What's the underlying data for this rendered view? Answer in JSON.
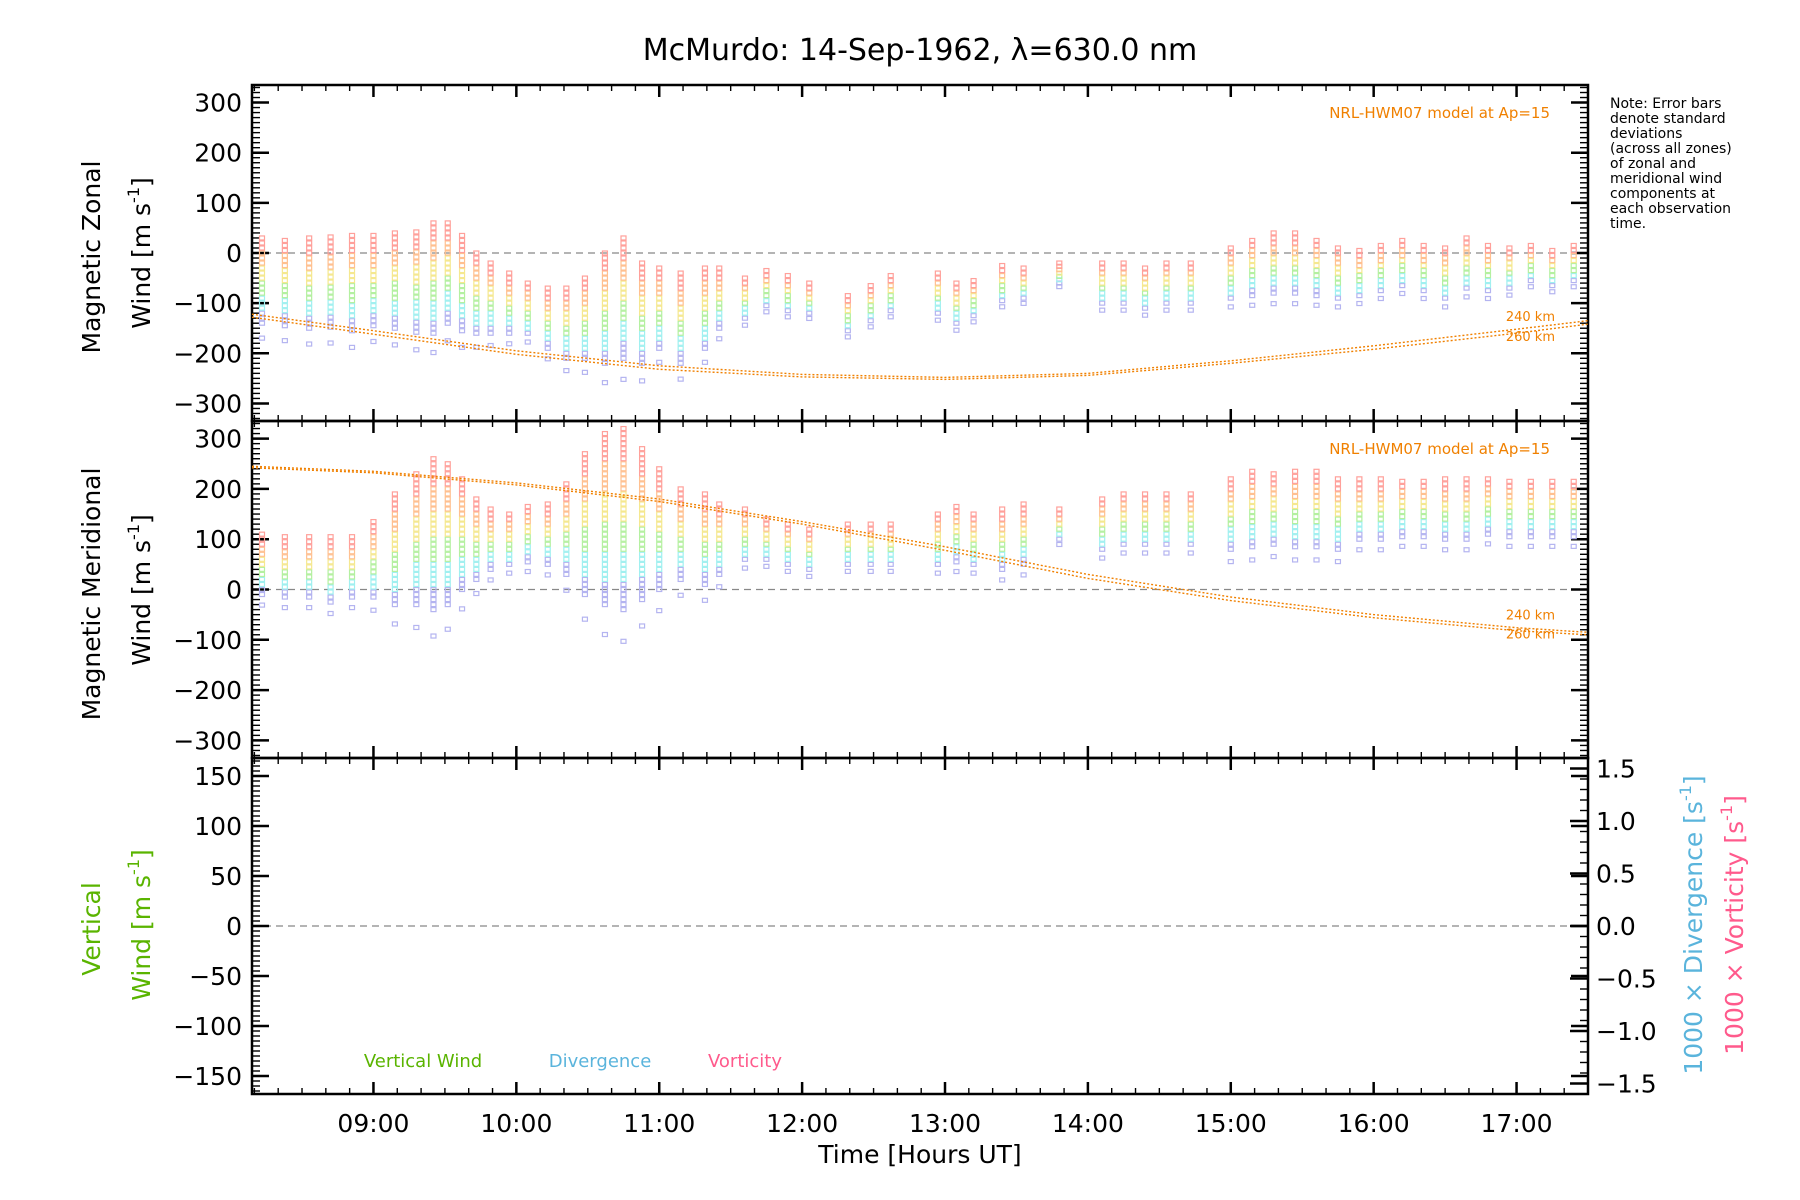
{
  "title": "McMurdo: 14-Sep-1962, λ=630.0 nm",
  "xaxis": {
    "label": "Time [Hours UT]",
    "range": [
      8.15,
      17.5
    ],
    "ticks": [
      9,
      10,
      11,
      12,
      13,
      14,
      15,
      16,
      17
    ],
    "tick_labels": [
      "09:00",
      "10:00",
      "11:00",
      "12:00",
      "13:00",
      "14:00",
      "15:00",
      "16:00",
      "17:00"
    ]
  },
  "note": [
    "Note: Error bars",
    "denote standard",
    "deviations",
    "(across all zones)",
    "of zonal and",
    "meridional wind",
    "components at",
    "each observation",
    "time."
  ],
  "colors": {
    "model": "#f08000",
    "vertical": "#5ab400",
    "divergence": "#5ab4dc",
    "vorticity": "#ff5a8c",
    "spread_scale": [
      "#ffa09a",
      "#ffc090",
      "#f5e890",
      "#b4f0a0",
      "#a0f0f0",
      "#b4b4f0"
    ]
  },
  "chart_data": [
    {
      "id": "zonal",
      "type": "scatter",
      "ylabel_line1": "Magnetic Zonal",
      "ylabel_line2_prefix": "Wind [m s",
      "ylabel_sup": "-1",
      "ylabel_suffix": "]",
      "ylim": [
        -335,
        335
      ],
      "yticks": [
        300,
        200,
        100,
        0,
        -100,
        -200,
        -300
      ],
      "ytick_labels": [
        "300",
        "200",
        "100",
        "0",
        "−100",
        "−200",
        "−300"
      ],
      "zero_line": true,
      "model_label": "NRL-HWM07 model at Ap=15",
      "model_curves": [
        {
          "name": "240 km",
          "x": [
            8.15,
            9,
            10,
            11,
            12,
            13,
            14,
            15,
            16,
            17,
            17.5
          ],
          "y": [
            -122,
            -155,
            -195,
            -225,
            -242,
            -248,
            -240,
            -215,
            -185,
            -152,
            -135
          ]
        },
        {
          "name": "260 km",
          "x": [
            8.15,
            9,
            10,
            11,
            12,
            13,
            14,
            15,
            16,
            17,
            17.5
          ],
          "y": [
            -128,
            -162,
            -202,
            -232,
            -247,
            -252,
            -244,
            -220,
            -192,
            -160,
            -142
          ]
        }
      ],
      "observations": {
        "x": [
          8.22,
          8.38,
          8.55,
          8.7,
          8.85,
          9.0,
          9.15,
          9.3,
          9.42,
          9.52,
          9.62,
          9.72,
          9.82,
          9.95,
          10.08,
          10.22,
          10.35,
          10.48,
          10.62,
          10.75,
          10.88,
          11.0,
          11.15,
          11.32,
          11.42,
          11.6,
          11.75,
          11.9,
          12.05,
          12.32,
          12.48,
          12.62,
          12.95,
          13.08,
          13.2,
          13.4,
          13.55,
          13.8,
          14.1,
          14.25,
          14.4,
          14.55,
          14.72,
          15.0,
          15.15,
          15.3,
          15.45,
          15.6,
          15.75,
          15.9,
          16.05,
          16.2,
          16.35,
          16.5,
          16.65,
          16.8,
          16.95,
          17.1,
          17.25,
          17.4
        ],
        "y": [
          -55,
          -60,
          -60,
          -58,
          -60,
          -55,
          -55,
          -58,
          -50,
          -40,
          -60,
          -80,
          -90,
          -100,
          -110,
          -130,
          -140,
          -130,
          -110,
          -90,
          -120,
          -110,
          -130,
          -110,
          -90,
          -90,
          -70,
          -80,
          -90,
          -120,
          -100,
          -80,
          -80,
          -100,
          -90,
          -60,
          -60,
          -40,
          -60,
          -60,
          -70,
          -60,
          -60,
          -40,
          -30,
          -20,
          -20,
          -30,
          -40,
          -40,
          -30,
          -20,
          -30,
          -40,
          -20,
          -30,
          -30,
          -20,
          -30,
          -20
        ],
        "spread": [
          85,
          85,
          90,
          90,
          95,
          90,
          95,
          100,
          110,
          100,
          95,
          80,
          70,
          60,
          50,
          60,
          70,
          80,
          110,
          120,
          100,
          80,
          90,
          80,
          60,
          40,
          35,
          35,
          30,
          35,
          35,
          35,
          40,
          40,
          35,
          35,
          30,
          20,
          40,
          40,
          40,
          40,
          40,
          50,
          55,
          60,
          60,
          55,
          50,
          45,
          45,
          45,
          45,
          50,
          50,
          45,
          40,
          35,
          35,
          35
        ]
      }
    },
    {
      "id": "meridional",
      "type": "scatter",
      "ylabel_line1": "Magnetic Meridional",
      "ylabel_line2_prefix": "Wind [m s",
      "ylabel_sup": "-1",
      "ylabel_suffix": "]",
      "ylim": [
        -335,
        335
      ],
      "yticks": [
        300,
        200,
        100,
        0,
        -100,
        -200,
        -300
      ],
      "ytick_labels": [
        "300",
        "200",
        "100",
        "0",
        "−100",
        "−200",
        "−300"
      ],
      "zero_line": true,
      "model_label": "NRL-HWM07 model at Ap=15",
      "model_curves": [
        {
          "name": "240 km",
          "x": [
            8.15,
            9,
            10,
            11,
            12,
            13,
            14,
            15,
            16,
            17,
            17.5
          ],
          "y": [
            245,
            235,
            212,
            180,
            135,
            85,
            30,
            -15,
            -50,
            -76,
            -85
          ]
        },
        {
          "name": "260 km",
          "x": [
            8.15,
            9,
            10,
            11,
            12,
            13,
            14,
            15,
            16,
            17,
            17.5
          ],
          "y": [
            242,
            232,
            208,
            175,
            130,
            78,
            22,
            -22,
            -56,
            -82,
            -90
          ]
        }
      ],
      "observations": {
        "x": [
          8.22,
          8.38,
          8.55,
          8.7,
          8.85,
          9.0,
          9.15,
          9.3,
          9.42,
          9.52,
          9.62,
          9.72,
          9.82,
          9.95,
          10.08,
          10.22,
          10.35,
          10.48,
          10.62,
          10.75,
          10.88,
          11.0,
          11.15,
          11.32,
          11.42,
          11.6,
          11.75,
          11.9,
          12.05,
          12.32,
          12.48,
          12.62,
          12.95,
          13.08,
          13.2,
          13.4,
          13.55,
          13.8,
          14.1,
          14.25,
          14.4,
          14.55,
          14.72,
          15.0,
          15.15,
          15.3,
          15.45,
          15.6,
          15.75,
          15.9,
          16.05,
          16.2,
          16.35,
          16.5,
          16.65,
          16.8,
          16.95,
          17.1,
          17.25,
          17.4
        ],
        "y": [
          50,
          45,
          45,
          40,
          45,
          60,
          80,
          100,
          110,
          110,
          110,
          100,
          100,
          100,
          110,
          110,
          120,
          130,
          140,
          140,
          130,
          120,
          110,
          100,
          100,
          110,
          100,
          90,
          80,
          90,
          90,
          90,
          100,
          110,
          100,
          100,
          110,
          130,
          130,
          140,
          140,
          140,
          140,
          150,
          160,
          160,
          160,
          160,
          150,
          160,
          160,
          160,
          160,
          160,
          160,
          165,
          160,
          160,
          160,
          160
        ],
        "spread": [
          60,
          60,
          60,
          65,
          60,
          75,
          110,
          130,
          150,
          140,
          110,
          80,
          60,
          50,
          55,
          60,
          90,
          140,
          170,
          180,
          150,
          120,
          90,
          90,
          70,
          50,
          40,
          40,
          40,
          40,
          40,
          40,
          50,
          55,
          50,
          60,
          60,
          30,
          50,
          50,
          50,
          50,
          50,
          70,
          75,
          70,
          75,
          75,
          70,
          60,
          60,
          55,
          55,
          60,
          60,
          55,
          55,
          55,
          55,
          55
        ]
      }
    },
    {
      "id": "vertical",
      "type": "line",
      "ylabel_line1": "Vertical",
      "ylabel_line2_prefix": "Wind [m s",
      "ylabel_sup": "-1",
      "ylabel_suffix": "]",
      "ylim": [
        -168,
        168
      ],
      "yticks": [
        150,
        100,
        50,
        0,
        -50,
        -100,
        -150
      ],
      "ytick_labels": [
        "150",
        "100",
        "50",
        "0",
        "−50",
        "−100",
        "−150"
      ],
      "zero_line": true,
      "y2lim": [
        -1.6,
        1.6
      ],
      "y2ticks": [
        1.5,
        1.0,
        0.5,
        0.0,
        -0.5,
        -1.0,
        -1.5
      ],
      "y2tick_labels": [
        "1.5",
        "1.0",
        "0.5",
        "0.0",
        "−0.5",
        "−1.0",
        "−1.5"
      ],
      "y2label_divergence_prefix": "1000 × Divergence [s",
      "y2label_vorticity_prefix": "1000 × Vorticity [s",
      "y2label_sup": "-1",
      "y2label_suffix": "]",
      "legend": [
        "Vertical Wind",
        "Divergence",
        "Vorticity"
      ],
      "series": []
    }
  ]
}
